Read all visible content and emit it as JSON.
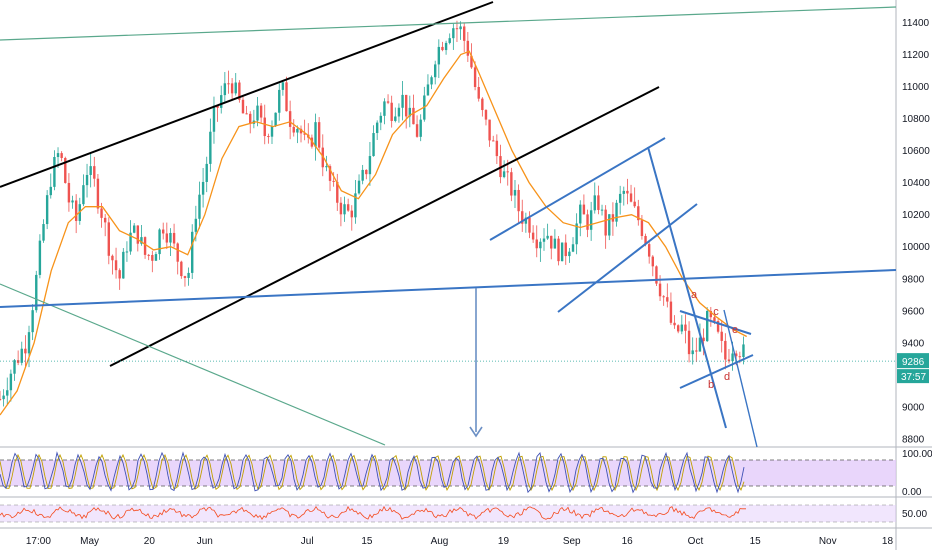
{
  "chart_data": {
    "type": "candlestick",
    "title": "",
    "xlabel": "",
    "ylabel": "",
    "ylim": [
      8750,
      11540
    ],
    "xlim": [
      0,
      210
    ],
    "y_ticks": [
      "11400",
      "11200",
      "11000",
      "10800",
      "10600",
      "10400",
      "10200",
      "10000",
      "9800",
      "9600",
      "9400",
      "9200",
      "9000",
      "8800"
    ],
    "y_tick_values": [
      11400,
      11200,
      11000,
      10800,
      10600,
      10400,
      10200,
      10000,
      9800,
      9600,
      9400,
      9200,
      9000,
      8800
    ],
    "x_ticks": [
      {
        "label": "17:00",
        "x": 9
      },
      {
        "label": "May",
        "x": 21
      },
      {
        "label": "20",
        "x": 35
      },
      {
        "label": "Jun",
        "x": 48
      },
      {
        "label": "Jul",
        "x": 72
      },
      {
        "label": "15",
        "x": 86
      },
      {
        "label": "Aug",
        "x": 103
      },
      {
        "label": "19",
        "x": 118
      },
      {
        "label": "Sep",
        "x": 134
      },
      {
        "label": "16",
        "x": 147
      },
      {
        "label": "Oct",
        "x": 163
      },
      {
        "label": "15",
        "x": 177
      },
      {
        "label": "Nov",
        "x": 194
      },
      {
        "label": "18",
        "x": 208
      }
    ],
    "last_price_label": "9286",
    "last_price": 9286,
    "countdown_label": "37:57",
    "price_path": [
      [
        0,
        9050
      ],
      [
        3,
        9250
      ],
      [
        6,
        9400
      ],
      [
        8,
        9700
      ],
      [
        10,
        10100
      ],
      [
        12,
        10450
      ],
      [
        14,
        10600
      ],
      [
        16,
        10300
      ],
      [
        18,
        10150
      ],
      [
        20,
        10500
      ],
      [
        22,
        10400
      ],
      [
        24,
        10200
      ],
      [
        26,
        9950
      ],
      [
        28,
        9800
      ],
      [
        30,
        10050
      ],
      [
        32,
        10100
      ],
      [
        34,
        9950
      ],
      [
        36,
        9950
      ],
      [
        38,
        10150
      ],
      [
        40,
        10050
      ],
      [
        42,
        9900
      ],
      [
        44,
        9800
      ],
      [
        46,
        10250
      ],
      [
        48,
        10450
      ],
      [
        50,
        10800
      ],
      [
        52,
        10950
      ],
      [
        54,
        11050
      ],
      [
        56,
        10900
      ],
      [
        58,
        10750
      ],
      [
        60,
        10850
      ],
      [
        62,
        10700
      ],
      [
        64,
        10800
      ],
      [
        66,
        11000
      ],
      [
        68,
        10800
      ],
      [
        70,
        10750
      ],
      [
        72,
        10600
      ],
      [
        74,
        10750
      ],
      [
        76,
        10500
      ],
      [
        78,
        10350
      ],
      [
        80,
        10250
      ],
      [
        82,
        10200
      ],
      [
        84,
        10350
      ],
      [
        86,
        10500
      ],
      [
        88,
        10750
      ],
      [
        90,
        10900
      ],
      [
        92,
        10850
      ],
      [
        94,
        10950
      ],
      [
        96,
        10800
      ],
      [
        98,
        10700
      ],
      [
        100,
        10950
      ],
      [
        102,
        11200
      ],
      [
        104,
        11300
      ],
      [
        106,
        11380
      ],
      [
        108,
        11350
      ],
      [
        110,
        11200
      ],
      [
        112,
        10900
      ],
      [
        114,
        10750
      ],
      [
        116,
        10600
      ],
      [
        118,
        10450
      ],
      [
        120,
        10350
      ],
      [
        122,
        10200
      ],
      [
        124,
        10150
      ],
      [
        126,
        10050
      ],
      [
        128,
        10100
      ],
      [
        130,
        10000
      ],
      [
        132,
        9950
      ],
      [
        134,
        10050
      ],
      [
        136,
        10200
      ],
      [
        138,
        10150
      ],
      [
        140,
        10300
      ],
      [
        142,
        10100
      ],
      [
        144,
        10200
      ],
      [
        146,
        10350
      ],
      [
        148,
        10250
      ],
      [
        150,
        10150
      ],
      [
        152,
        10000
      ],
      [
        154,
        9800
      ],
      [
        156,
        9650
      ],
      [
        158,
        9450
      ],
      [
        160,
        9500
      ],
      [
        162,
        9300
      ],
      [
        164,
        9400
      ],
      [
        166,
        9550
      ],
      [
        168,
        9450
      ],
      [
        170,
        9300
      ],
      [
        172,
        9400
      ],
      [
        174,
        9350
      ],
      [
        175,
        9286
      ]
    ],
    "ema_path": [
      [
        0,
        8950
      ],
      [
        4,
        9100
      ],
      [
        8,
        9400
      ],
      [
        12,
        9850
      ],
      [
        16,
        10150
      ],
      [
        20,
        10250
      ],
      [
        24,
        10250
      ],
      [
        28,
        10100
      ],
      [
        32,
        10050
      ],
      [
        36,
        9980
      ],
      [
        40,
        10000
      ],
      [
        44,
        9950
      ],
      [
        48,
        10200
      ],
      [
        52,
        10550
      ],
      [
        56,
        10750
      ],
      [
        60,
        10780
      ],
      [
        64,
        10750
      ],
      [
        68,
        10780
      ],
      [
        72,
        10700
      ],
      [
        76,
        10550
      ],
      [
        80,
        10350
      ],
      [
        84,
        10300
      ],
      [
        88,
        10450
      ],
      [
        92,
        10700
      ],
      [
        96,
        10820
      ],
      [
        100,
        10880
      ],
      [
        104,
        11050
      ],
      [
        108,
        11200
      ],
      [
        110,
        11220
      ],
      [
        112,
        11100
      ],
      [
        116,
        10850
      ],
      [
        120,
        10600
      ],
      [
        124,
        10400
      ],
      [
        128,
        10250
      ],
      [
        132,
        10150
      ],
      [
        136,
        10120
      ],
      [
        140,
        10150
      ],
      [
        144,
        10180
      ],
      [
        148,
        10200
      ],
      [
        152,
        10150
      ],
      [
        156,
        10000
      ],
      [
        160,
        9800
      ],
      [
        164,
        9650
      ],
      [
        168,
        9560
      ],
      [
        172,
        9480
      ],
      [
        175,
        9440
      ]
    ],
    "annotations": [
      "a",
      "b",
      "c",
      "d",
      "e"
    ]
  },
  "indicators": {
    "stoch_rsi": {
      "upper_label": "100.00",
      "lower_label": "0.00"
    },
    "rsi": {
      "mid_label": "50.00"
    }
  },
  "colors": {
    "candle_up": "#26a69a",
    "candle_down": "#ef5350",
    "ema": "#f7931a",
    "trend_black": "#000000",
    "trend_blue": "#3a75c4",
    "trend_green": "#5aa88c",
    "arrow": "#6b8fc4",
    "wave_label": "#c83232",
    "stoch_band": "#e1c8fa",
    "stoch_k": "#3f51b5",
    "stoch_d": "#c0a000",
    "rsi_line": "#f44a1e",
    "price_badge": "#26a69a"
  }
}
